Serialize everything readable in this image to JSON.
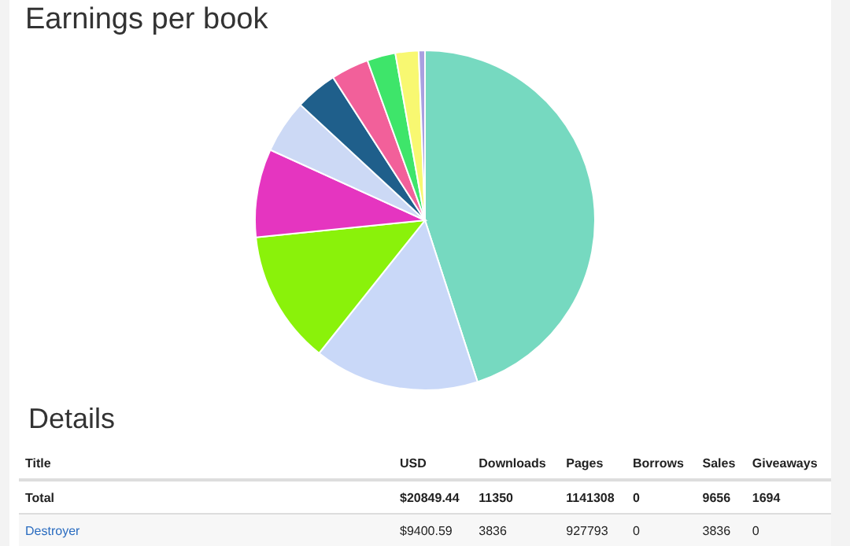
{
  "chart_data": {
    "type": "pie",
    "title": "Earnings per book",
    "categories": [
      null,
      null,
      null,
      null,
      null,
      null,
      null,
      null,
      null,
      null
    ],
    "values": [
      45.0,
      15.7,
      12.7,
      8.4,
      5.1,
      4.0,
      3.6,
      2.7,
      2.2,
      0.6
    ],
    "colors": [
      "#76d9c0",
      "#c9d8f8",
      "#8af20a",
      "#e535c0",
      "#ccd9f5",
      "#1f5f8b",
      "#f2609a",
      "#3ee56a",
      "#f8f871",
      "#a9a0e0"
    ],
    "annotations": [
      "Details",
      "Title",
      "USD",
      "Downloads",
      "Pages",
      "Borrows",
      "Sales",
      "Giveaways",
      "Total",
      "$20849.44",
      "11350",
      "1141308",
      "0",
      "9656",
      "1694",
      "Destroyer",
      "$9400.59",
      "3836",
      "927793",
      "0",
      "3836",
      "0"
    ]
  }
}
